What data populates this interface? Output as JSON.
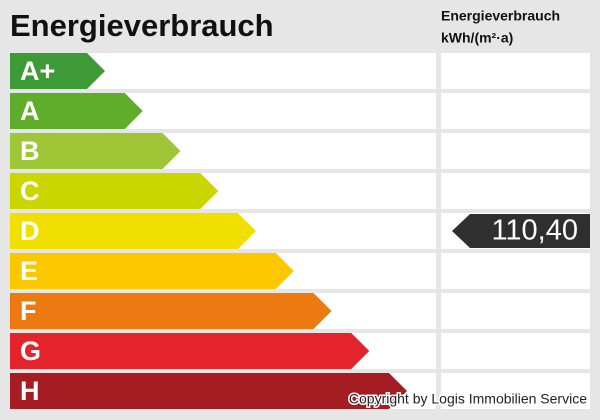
{
  "header": {
    "title": "Energieverbrauch",
    "column_title": "Energieverbrauch",
    "column_unit": "kWh/(m²·a)"
  },
  "classes": [
    {
      "label": "A+",
      "color": "#3d9a36"
    },
    {
      "label": "A",
      "color": "#5ead2b"
    },
    {
      "label": "B",
      "color": "#a0c638"
    },
    {
      "label": "C",
      "color": "#cbd500"
    },
    {
      "label": "D",
      "color": "#f1df00"
    },
    {
      "label": "E",
      "color": "#fdc700"
    },
    {
      "label": "F",
      "color": "#ed7a10"
    },
    {
      "label": "G",
      "color": "#e3242b"
    },
    {
      "label": "H",
      "color": "#a51d23"
    }
  ],
  "indicator": {
    "text": "110,40",
    "class": "D"
  },
  "footer": {
    "copyright": "Copyright by Logis Immobilien Service"
  }
}
